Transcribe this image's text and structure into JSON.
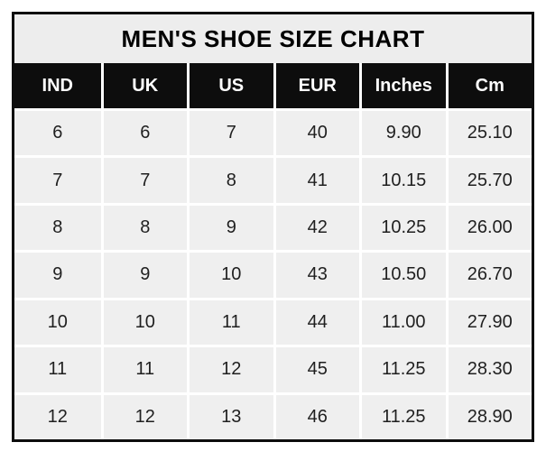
{
  "title": "MEN'S SHOE SIZE CHART",
  "chart_data": {
    "type": "table",
    "title": "MEN'S SHOE SIZE CHART",
    "columns": [
      "IND",
      "UK",
      "US",
      "EUR",
      "Inches",
      "Cm"
    ],
    "rows": [
      [
        "6",
        "6",
        "7",
        "40",
        "9.90",
        "25.10"
      ],
      [
        "7",
        "7",
        "8",
        "41",
        "10.15",
        "25.70"
      ],
      [
        "8",
        "8",
        "9",
        "42",
        "10.25",
        "26.00"
      ],
      [
        "9",
        "9",
        "10",
        "43",
        "10.50",
        "26.70"
      ],
      [
        "10",
        "10",
        "11",
        "44",
        "11.00",
        "27.90"
      ],
      [
        "11",
        "11",
        "12",
        "45",
        "11.25",
        "28.30"
      ],
      [
        "12",
        "12",
        "13",
        "46",
        "11.25",
        "28.90"
      ]
    ]
  },
  "colors": {
    "outer_border": "#0d0d0d",
    "title_bg": "#ededed",
    "header_bg": "#0d0d0d",
    "header_text": "#ffffff",
    "cell_bg": "#efefef",
    "separator": "#ffffff",
    "body_text": "#1f1f1f"
  }
}
